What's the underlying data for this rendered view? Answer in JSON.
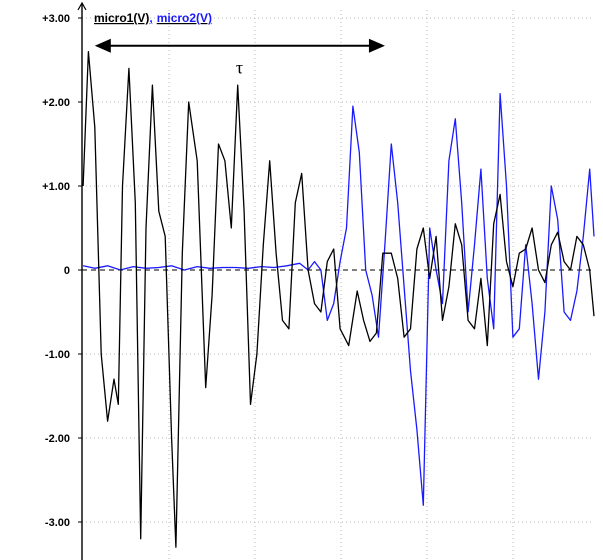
{
  "chart_data": {
    "type": "line",
    "ylim": [
      -3.2,
      3.0
    ],
    "grid": true,
    "xlabel": "",
    "ylabel": "",
    "yticks": [
      {
        "value": 3,
        "label": "+3.00"
      },
      {
        "value": 2,
        "label": "+2.00"
      },
      {
        "value": 1,
        "label": "+1.00"
      },
      {
        "value": 0,
        "label": "0"
      },
      {
        "value": -1,
        "label": "-1.00"
      },
      {
        "value": -2,
        "label": "-2.00"
      },
      {
        "value": -3,
        "label": "-3.00"
      }
    ],
    "legend": {
      "placement": "top-left",
      "entries": [
        {
          "name": "micro1(V)",
          "color": "#000000"
        },
        {
          "name": "micro2(V)",
          "color": "#1a1aff"
        }
      ],
      "separator": ","
    },
    "annotation": {
      "label": "τ",
      "from_x": 0.6,
      "to_x": 14.2,
      "y": 2.67
    },
    "x_range": [
      0,
      24
    ],
    "series": [
      {
        "name": "micro1(V)",
        "color": "#000000",
        "x": [
          0.05,
          0.3,
          0.6,
          0.9,
          1.2,
          1.5,
          1.7,
          1.9,
          2.2,
          2.5,
          2.75,
          3.0,
          3.3,
          3.6,
          3.9,
          4.2,
          4.4,
          4.7,
          5.0,
          5.4,
          5.8,
          6.1,
          6.4,
          6.7,
          7.0,
          7.3,
          7.6,
          7.9,
          8.2,
          8.5,
          8.8,
          9.1,
          9.4,
          9.7,
          10.0,
          10.3,
          10.6,
          10.9,
          11.2,
          11.5,
          11.8,
          12.1,
          12.5,
          12.9,
          13.2,
          13.5,
          13.8,
          14.1,
          14.5,
          14.8,
          15.1,
          15.4,
          15.7,
          16.0,
          16.3,
          16.6,
          16.9,
          17.2,
          17.5,
          17.8,
          18.1,
          18.4,
          18.7,
          19.0,
          19.3,
          19.6,
          19.9,
          20.2,
          20.5,
          20.8,
          21.1,
          21.4,
          21.7,
          22.0,
          22.3,
          22.6,
          22.9,
          23.2,
          23.5,
          23.8,
          24.0
        ],
        "values": [
          1.0,
          2.6,
          1.7,
          -1.0,
          -1.8,
          -1.3,
          -1.6,
          1.0,
          2.4,
          0.8,
          -3.2,
          0.5,
          2.2,
          0.7,
          0.4,
          -2.0,
          -3.3,
          0.2,
          2.0,
          1.3,
          -1.4,
          -0.3,
          1.5,
          1.3,
          0.5,
          2.2,
          0.7,
          -1.6,
          -1.0,
          0.3,
          1.3,
          0.2,
          -0.6,
          -0.7,
          0.8,
          1.15,
          0.0,
          -0.4,
          -0.5,
          0.1,
          0.25,
          -0.7,
          -0.9,
          -0.25,
          -0.6,
          -0.85,
          -0.75,
          0.2,
          0.2,
          -0.1,
          -0.8,
          -0.7,
          0.25,
          0.5,
          -0.1,
          0.4,
          -0.6,
          -0.2,
          0.55,
          0.3,
          -0.6,
          -0.7,
          -0.1,
          -0.9,
          0.55,
          0.9,
          0.1,
          -0.2,
          0.2,
          0.25,
          0.5,
          0.0,
          -0.15,
          0.3,
          0.45,
          0.1,
          0.0,
          0.4,
          0.3,
          0.0,
          -0.55
        ]
      },
      {
        "name": "micro2(V)",
        "color": "#1a1aff",
        "x": [
          0.05,
          0.6,
          1.2,
          1.8,
          2.4,
          3.0,
          3.6,
          4.2,
          4.8,
          5.4,
          6.0,
          6.6,
          7.2,
          7.8,
          8.4,
          9.0,
          9.6,
          10.2,
          10.6,
          10.9,
          11.2,
          11.5,
          11.8,
          12.1,
          12.4,
          12.7,
          13.0,
          13.3,
          13.6,
          13.9,
          14.2,
          14.5,
          14.8,
          15.1,
          15.4,
          15.7,
          16.0,
          16.3,
          16.6,
          16.9,
          17.2,
          17.5,
          17.8,
          18.1,
          18.4,
          18.7,
          19.0,
          19.3,
          19.6,
          19.9,
          20.2,
          20.5,
          20.8,
          21.1,
          21.4,
          21.7,
          22.0,
          22.3,
          22.6,
          22.9,
          23.2,
          23.5,
          23.8,
          24.0
        ],
        "values": [
          0.05,
          0.02,
          0.05,
          0.0,
          0.04,
          0.02,
          0.03,
          0.05,
          0.0,
          0.04,
          0.02,
          0.03,
          0.03,
          0.02,
          0.04,
          0.03,
          0.05,
          0.08,
          0.0,
          0.1,
          0.0,
          -0.6,
          -0.4,
          0.1,
          0.5,
          1.95,
          1.4,
          0.0,
          -0.3,
          -0.8,
          0.3,
          1.5,
          0.8,
          -0.2,
          -1.2,
          -1.9,
          -2.8,
          0.5,
          0.0,
          -0.4,
          1.3,
          1.8,
          0.8,
          -0.5,
          0.3,
          1.2,
          -0.1,
          -0.7,
          2.1,
          1.0,
          -0.8,
          -0.7,
          0.3,
          -0.4,
          -1.3,
          -0.5,
          1.0,
          0.6,
          -0.5,
          -0.6,
          -0.25,
          0.4,
          1.2,
          0.4
        ]
      }
    ]
  }
}
